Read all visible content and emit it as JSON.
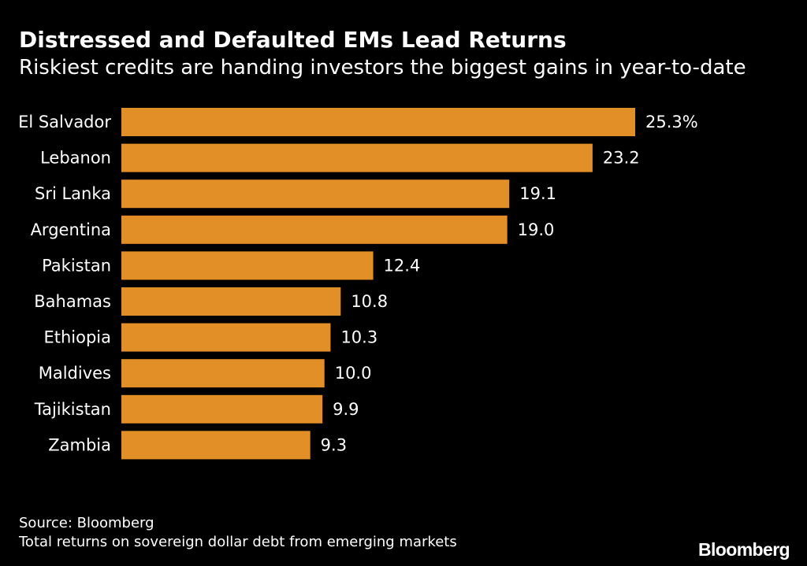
{
  "chart_data": {
    "type": "bar",
    "orientation": "horizontal",
    "title": "Distressed and Defaulted EMs Lead Returns",
    "subtitle": "Riskiest credits are handing investors the biggest gains in year-to-date",
    "categories": [
      "El Salvador",
      "Lebanon",
      "Sri Lanka",
      "Argentina",
      "Pakistan",
      "Bahamas",
      "Ethiopia",
      "Maldives",
      "Tajikistan",
      "Zambia"
    ],
    "values": [
      25.3,
      23.2,
      19.1,
      19.0,
      12.4,
      10.8,
      10.3,
      10.0,
      9.9,
      9.3
    ],
    "value_labels": [
      "25.3%",
      "23.2",
      "19.1",
      "19.0",
      "12.4",
      "10.8",
      "10.3",
      "10.0",
      "9.9",
      "9.3"
    ],
    "xlim": [
      0,
      25.3
    ],
    "xlabel": "",
    "ylabel": "",
    "grid": false,
    "legend": "none",
    "bar_color": "#e38f27"
  },
  "footer": {
    "source": "Source: Bloomberg",
    "note": "Total returns on sovereign dollar debt from emerging markets",
    "brand": "Bloomberg"
  },
  "colors": {
    "background": "#000000",
    "text": "#ffffff"
  }
}
